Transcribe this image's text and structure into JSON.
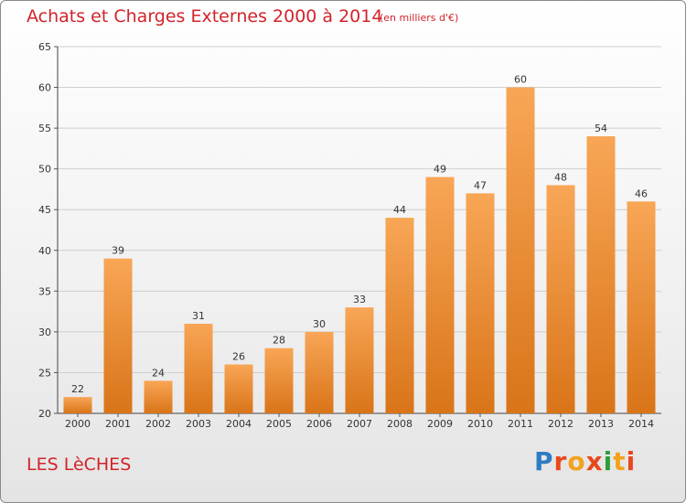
{
  "header": {
    "title": "Achats et Charges Externes 2000 à 2014",
    "unit_note": "(en milliers d'€)"
  },
  "footer": {
    "commune": "LES LèCHES",
    "brand": "Proxiti",
    "brand_colors": [
      "#2e7bc4",
      "#e8481c",
      "#f3a21b",
      "#e8481c",
      "#2e9c3a",
      "#f3a21b",
      "#e8481c"
    ]
  },
  "colors": {
    "text_accent": "#d2232a",
    "bar_top": "#f8a656",
    "bar_bottom": "#d97418"
  },
  "chart_data": {
    "type": "bar",
    "title": "Achats et Charges Externes 2000 à 2014",
    "subtitle": "(en milliers d'€)",
    "xlabel": "",
    "ylabel": "",
    "categories": [
      "2000",
      "2001",
      "2002",
      "2003",
      "2004",
      "2005",
      "2006",
      "2007",
      "2008",
      "2009",
      "2010",
      "2011",
      "2012",
      "2013",
      "2014"
    ],
    "values": [
      22,
      39,
      24,
      31,
      26,
      28,
      30,
      33,
      44,
      49,
      47,
      60,
      48,
      54,
      46
    ],
    "ylim": [
      20,
      65
    ],
    "yticks": [
      20,
      25,
      30,
      35,
      40,
      45,
      50,
      55,
      60,
      65
    ],
    "grid": true,
    "data_labels": true
  }
}
